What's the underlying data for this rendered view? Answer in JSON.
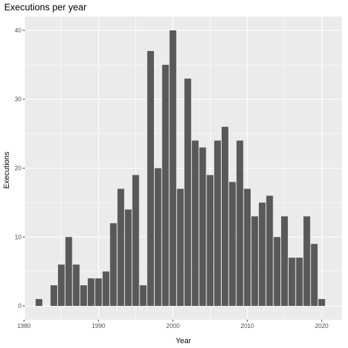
{
  "chart_data": {
    "type": "bar",
    "title": "Executions per year",
    "xlabel": "Year",
    "ylabel": "Executions",
    "x": [
      1982,
      1984,
      1985,
      1986,
      1987,
      1988,
      1989,
      1990,
      1991,
      1992,
      1993,
      1994,
      1995,
      1996,
      1997,
      1998,
      1999,
      2000,
      2001,
      2002,
      2003,
      2004,
      2005,
      2006,
      2007,
      2008,
      2009,
      2010,
      2011,
      2012,
      2013,
      2014,
      2015,
      2016,
      2017,
      2018,
      2019,
      2020
    ],
    "values": [
      1,
      3,
      6,
      10,
      6,
      3,
      4,
      4,
      5,
      12,
      17,
      14,
      19,
      3,
      37,
      20,
      35,
      40,
      17,
      33,
      24,
      23,
      19,
      24,
      26,
      18,
      24,
      17,
      13,
      15,
      16,
      10,
      13,
      7,
      7,
      13,
      9,
      1
    ],
    "xlim": [
      1980.1,
      2022.7
    ],
    "ylim": [
      -2,
      42
    ],
    "x_ticks": [
      1980,
      1990,
      2000,
      2010,
      2020
    ],
    "y_ticks": [
      0,
      10,
      20,
      30,
      40
    ],
    "grid": true,
    "legend": "none",
    "colors": {
      "bar": "#595959",
      "panel": "#ebebeb",
      "grid": "#ffffff"
    }
  }
}
